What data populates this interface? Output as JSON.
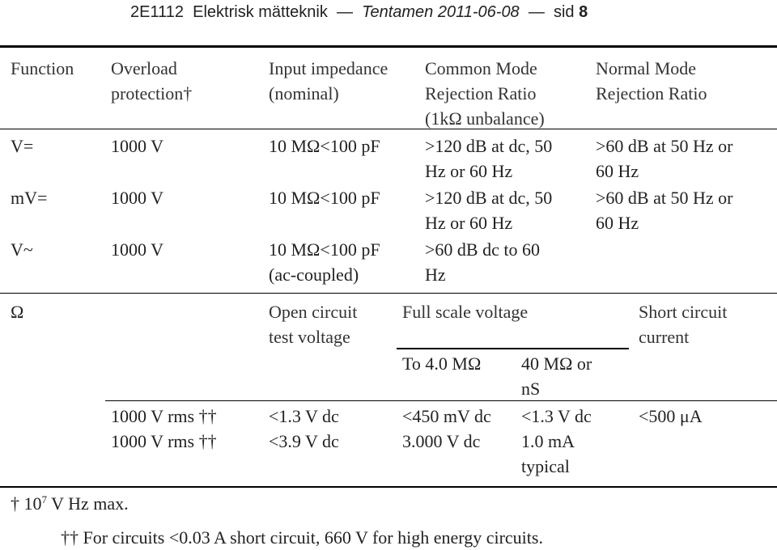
{
  "header": {
    "course": "2E1112",
    "subject": "Elektrisk mätteknik",
    "dash1": "—",
    "exam": "Tentamen 2011-06-08",
    "dash2": "—",
    "page_label": "sid",
    "page_number": "8"
  },
  "table_headers": {
    "function": "Function",
    "overload_1": "Overload",
    "overload_2": "protection†",
    "impedance_1": "Input impedance",
    "impedance_2": "(nominal)",
    "cmrr_1": "Common Mode",
    "cmrr_2": "Rejection Ratio",
    "cmrr_3": "(1kΩ unbalance)",
    "nmrr_1": "Normal Mode",
    "nmrr_2": "Rejection Ratio"
  },
  "rows": [
    {
      "function": "V=",
      "overload": "1000 V",
      "impedance_1": "10 MΩ<100 pF",
      "impedance_2": "",
      "cmrr_1": ">120 dB at dc, 50",
      "cmrr_2": "Hz or 60 Hz",
      "nmrr_1": ">60 dB at 50 Hz or",
      "nmrr_2": "60 Hz"
    },
    {
      "function": "mV=",
      "overload": "1000 V",
      "impedance_1": "10 MΩ<100 pF",
      "impedance_2": "",
      "cmrr_1": ">120 dB at dc, 50",
      "cmrr_2": "Hz or 60 Hz",
      "nmrr_1": ">60 dB at 50 Hz or",
      "nmrr_2": "60 Hz"
    },
    {
      "function": "V~",
      "overload": "1000 V",
      "impedance_1": "10 MΩ<100 pF",
      "impedance_2": "(ac-coupled)",
      "cmrr_1": ">60 dB dc to 60",
      "cmrr_2": "Hz",
      "nmrr_1": "",
      "nmrr_2": ""
    }
  ],
  "ohm_section": {
    "function": "Ω",
    "open_circuit_1": "Open circuit",
    "open_circuit_2": "test voltage",
    "full_scale": "Full scale voltage",
    "short_circuit_1": "Short circuit",
    "short_circuit_2": "current",
    "to_4": "To 4.0 MΩ",
    "forty_1": "40 MΩ or",
    "forty_2": "nS",
    "rows": [
      {
        "overload": "1000 V rms ††",
        "open_circuit": "<1.3 V dc",
        "to_4": "<450 mV dc",
        "forty": "<1.3 V dc",
        "short": "<500 μA"
      },
      {
        "overload": "1000 V rms ††",
        "open_circuit": "<3.9 V dc",
        "to_4": "3.000 V dc",
        "forty": "1.0 mA",
        "short": ""
      }
    ],
    "typical": "typical"
  },
  "footnotes": {
    "dagger_prefix": "† 10",
    "dagger_exp": "7",
    "dagger_suffix": " V Hz max.",
    "double_dagger": "†† For circuits <0.03 A short circuit, 660 V for high energy circuits."
  }
}
